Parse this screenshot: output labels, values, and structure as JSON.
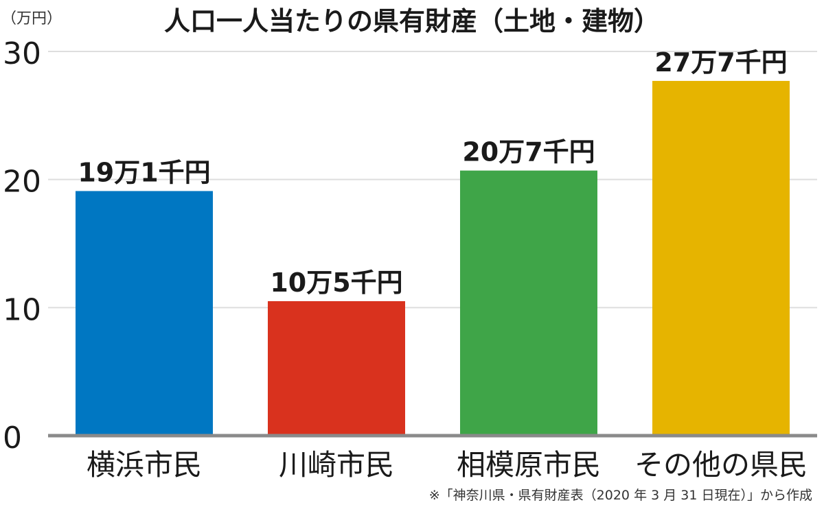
{
  "chart_data": {
    "type": "bar",
    "title": "人口一人当たりの県有財産（土地・建物）",
    "y_unit_label": "（万円）",
    "categories": [
      "横浜市民",
      "川崎市民",
      "相模原市民",
      "その他の県民"
    ],
    "values": [
      19.1,
      10.5,
      20.7,
      27.7
    ],
    "data_labels": [
      "19万1千円",
      "10万5千円",
      "20万7千円",
      "27万7千円"
    ],
    "colors": [
      "#0077C2",
      "#D9321E",
      "#3FA548",
      "#E6B400"
    ],
    "ylim": [
      0,
      30
    ],
    "yticks": [
      0,
      10,
      20,
      30
    ],
    "grid": true,
    "source_note": "※「神奈川県・県有財産表（2020 年 3 月 31 日現在）」から作成"
  }
}
